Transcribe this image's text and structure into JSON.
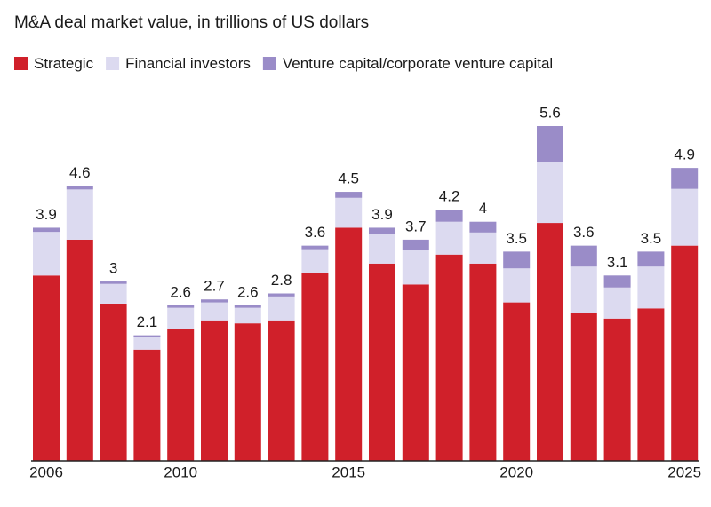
{
  "chart_data": {
    "type": "bar",
    "stacked": true,
    "title": "M&A deal market value, in trillions of US dollars",
    "categories": [
      2006,
      null,
      null,
      null,
      2010,
      null,
      null,
      null,
      null,
      2015,
      null,
      null,
      null,
      null,
      2020,
      null,
      null,
      null,
      null,
      2025
    ],
    "series": [
      {
        "name": "Strategic",
        "color": "#d0202a",
        "values": [
          3.1,
          3.7,
          2.63,
          1.86,
          2.2,
          2.35,
          2.3,
          2.35,
          3.15,
          3.9,
          3.3,
          2.95,
          3.45,
          3.3,
          2.65,
          3.98,
          2.48,
          2.38,
          2.55,
          3.6
        ]
      },
      {
        "name": "Financial investors",
        "color": "#dcdaf0",
        "values": [
          0.73,
          0.84,
          0.33,
          0.21,
          0.36,
          0.3,
          0.26,
          0.4,
          0.39,
          0.5,
          0.5,
          0.58,
          0.55,
          0.52,
          0.57,
          1.02,
          0.77,
          0.52,
          0.7,
          0.95
        ]
      },
      {
        "name": "Venture capital/corporate venture capital",
        "color": "#9a8cc8",
        "values": [
          0.07,
          0.06,
          0.04,
          0.03,
          0.04,
          0.05,
          0.04,
          0.05,
          0.06,
          0.1,
          0.1,
          0.17,
          0.2,
          0.18,
          0.28,
          0.6,
          0.35,
          0.2,
          0.25,
          0.35
        ]
      }
    ],
    "totals": [
      3.9,
      4.6,
      3,
      2.1,
      2.6,
      2.7,
      2.6,
      2.8,
      3.6,
      4.5,
      3.9,
      3.7,
      4.2,
      4,
      3.5,
      5.6,
      3.6,
      3.1,
      3.5,
      4.9
    ]
  }
}
